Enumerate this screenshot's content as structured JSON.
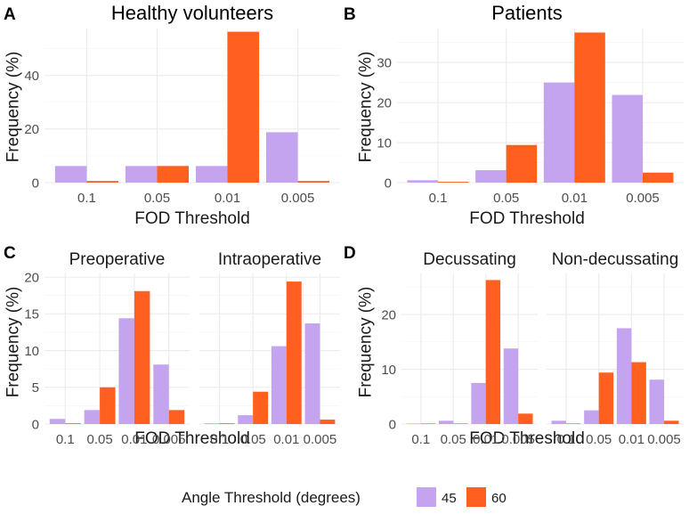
{
  "legend": {
    "title": "Angle Threshold (degrees)",
    "items": [
      {
        "label": "45",
        "color": "#c5a4ef"
      },
      {
        "label": "60",
        "color": "#ff5f1f"
      }
    ]
  },
  "chart_data": [
    {
      "id": "A",
      "type": "bar",
      "tag": "A",
      "title": "Healthy volunteers",
      "xlabel": "FOD Threshold",
      "ylabel": "Frequency (%)",
      "categories": [
        "0.1",
        "0.05",
        "0.01",
        "0.005"
      ],
      "ylim": [
        0,
        57.5
      ],
      "yticks": [
        0,
        20,
        40
      ],
      "facets": [
        {
          "strip": "",
          "series": [
            {
              "name": "45",
              "values": [
                6.2,
                6.2,
                6.2,
                18.8
              ]
            },
            {
              "name": "60",
              "values": [
                0.6,
                6.2,
                56.3,
                0.6
              ]
            }
          ]
        }
      ]
    },
    {
      "id": "B",
      "type": "bar",
      "tag": "B",
      "title": "Patients",
      "xlabel": "FOD Threshold",
      "ylabel": "Frequency (%)",
      "categories": [
        "0.1",
        "0.05",
        "0.01",
        "0.005"
      ],
      "ylim": [
        0,
        38.5
      ],
      "yticks": [
        0,
        10,
        20,
        30
      ],
      "facets": [
        {
          "strip": "",
          "series": [
            {
              "name": "45",
              "values": [
                0.6,
                3.1,
                25.0,
                21.9
              ]
            },
            {
              "name": "60",
              "values": [
                0.2,
                9.4,
                37.5,
                2.5
              ]
            }
          ]
        }
      ]
    },
    {
      "id": "C",
      "type": "bar",
      "tag": "C",
      "title": "",
      "xlabel": "FOD Threshold",
      "ylabel": "Frequency (%)",
      "categories": [
        "0.1",
        "0.05",
        "0.01",
        "0.005"
      ],
      "ylim": [
        0,
        20.5
      ],
      "yticks": [
        0,
        5,
        10,
        15,
        20
      ],
      "facets": [
        {
          "strip": "Preoperative",
          "series": [
            {
              "name": "45",
              "values": [
                0.7,
                1.9,
                14.4,
                8.1
              ]
            },
            {
              "name": "60",
              "values": [
                0.1,
                5.0,
                18.1,
                1.9
              ]
            }
          ]
        },
        {
          "strip": "Intraoperative",
          "series": [
            {
              "name": "45",
              "values": [
                0.1,
                1.2,
                10.6,
                13.7
              ]
            },
            {
              "name": "60",
              "values": [
                0.1,
                4.4,
                19.4,
                0.6
              ]
            }
          ]
        }
      ]
    },
    {
      "id": "D",
      "type": "bar",
      "tag": "D",
      "title": "",
      "xlabel": "FOD Threshold",
      "ylabel": "Frequency (%)",
      "categories": [
        "0.1",
        "0.05",
        "0.01",
        "0.005"
      ],
      "ylim": [
        0,
        27.5
      ],
      "yticks": [
        0,
        10,
        20
      ],
      "facets": [
        {
          "strip": "Decussating",
          "series": [
            {
              "name": "45",
              "values": [
                0.1,
                0.6,
                7.5,
                13.8
              ]
            },
            {
              "name": "60",
              "values": [
                0.1,
                0.1,
                26.3,
                1.9
              ]
            }
          ]
        },
        {
          "strip": "Non-decussating",
          "series": [
            {
              "name": "45",
              "values": [
                0.6,
                2.5,
                17.5,
                8.1
              ]
            },
            {
              "name": "60",
              "values": [
                0.1,
                9.4,
                11.3,
                0.6
              ]
            }
          ]
        }
      ]
    }
  ]
}
